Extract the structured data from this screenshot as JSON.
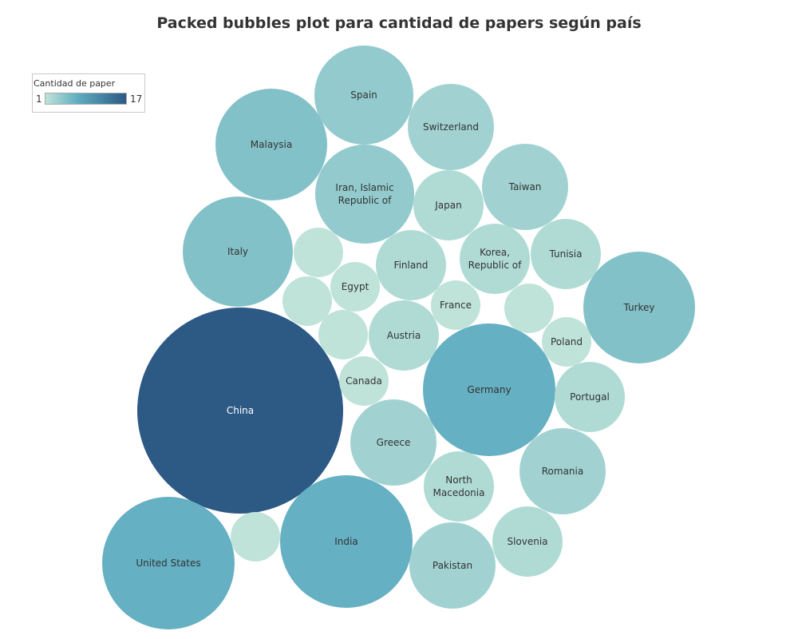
{
  "chart_data": {
    "type": "packed-bubble",
    "title": "Packed bubbles plot para cantidad de papers según país",
    "legend": {
      "title": "Cantidad de paper",
      "min": 1,
      "max": 17,
      "color_min": "#bfe3d9",
      "color_mid": "#5fadc0",
      "color_max": "#2d5985",
      "placement": "top-left"
    },
    "bubbles": [
      {
        "label": "China",
        "value": 17
      },
      {
        "label": "United States",
        "value": 7
      },
      {
        "label": "India",
        "value": 7
      },
      {
        "label": "Germany",
        "value": 7
      },
      {
        "label": "Malaysia",
        "value": 5
      },
      {
        "label": "Italy",
        "value": 5
      },
      {
        "label": "Turkey",
        "value": 5
      },
      {
        "label": "Spain",
        "value": 4
      },
      {
        "label": "Iran, Islamic Republic of",
        "value": 4
      },
      {
        "label": "Greece",
        "value": 3
      },
      {
        "label": "Romania",
        "value": 3
      },
      {
        "label": "Pakistan",
        "value": 3
      },
      {
        "label": "Switzerland",
        "value": 3
      },
      {
        "label": "Taiwan",
        "value": 3
      },
      {
        "label": "Austria",
        "value": 2
      },
      {
        "label": "Finland",
        "value": 2
      },
      {
        "label": "Korea, Republic of",
        "value": 2
      },
      {
        "label": "Japan",
        "value": 2
      },
      {
        "label": "North Macedonia",
        "value": 2
      },
      {
        "label": "Tunisia",
        "value": 2
      },
      {
        "label": "Portugal",
        "value": 2
      },
      {
        "label": "Slovenia",
        "value": 2
      },
      {
        "label": "Egypt",
        "value": 1
      },
      {
        "label": "France",
        "value": 1
      },
      {
        "label": "Canada",
        "value": 1
      },
      {
        "label": "Poland",
        "value": 1
      },
      {
        "label": "",
        "value": 1
      },
      {
        "label": "",
        "value": 1
      },
      {
        "label": "",
        "value": 1
      },
      {
        "label": "",
        "value": 1
      },
      {
        "label": "",
        "value": 1
      }
    ]
  }
}
